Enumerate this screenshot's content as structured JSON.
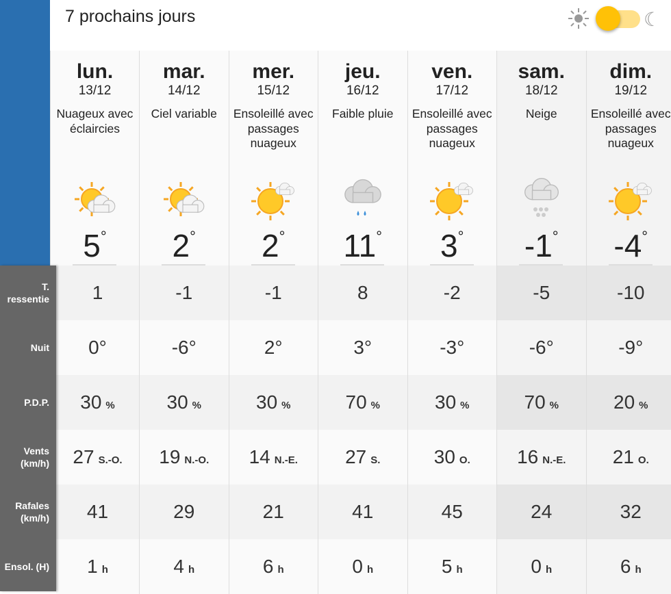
{
  "header": {
    "title": "7 prochains jours",
    "theme_toggle": {
      "state": "light",
      "icons": [
        "sun-icon",
        "moon-icon"
      ],
      "accent": "#ffc107"
    }
  },
  "days": [
    {
      "name": "lun.",
      "date": "13/12",
      "desc": "Nuageux avec éclaircies",
      "icon": "sun-behind-cloud",
      "temp": "5",
      "weekend": false
    },
    {
      "name": "mar.",
      "date": "14/12",
      "desc": "Ciel variable",
      "icon": "sun-behind-cloud",
      "temp": "2",
      "weekend": false
    },
    {
      "name": "mer.",
      "date": "15/12",
      "desc": "Ensoleillé avec passages nuageux",
      "icon": "sun-small-cloud",
      "temp": "2",
      "weekend": false
    },
    {
      "name": "jeu.",
      "date": "16/12",
      "desc": "Faible pluie",
      "icon": "rain-cloud",
      "temp": "11",
      "weekend": false
    },
    {
      "name": "ven.",
      "date": "17/12",
      "desc": "Ensoleillé avec passages nuageux",
      "icon": "sun-small-cloud",
      "temp": "3",
      "weekend": false
    },
    {
      "name": "sam.",
      "date": "18/12",
      "desc": "Neige",
      "icon": "snow-cloud",
      "temp": "-1",
      "weekend": true
    },
    {
      "name": "dim.",
      "date": "19/12",
      "desc": "Ensoleillé avec passages nuageux",
      "icon": "sun-small-cloud",
      "temp": "-4",
      "weekend": true
    }
  ],
  "degree": "°",
  "rows": [
    {
      "label": "T. ressentie",
      "values": [
        "1",
        "-1",
        "-1",
        "8",
        "-2",
        "-5",
        "-10"
      ],
      "units": [
        "",
        "",
        "",
        "",
        "",
        "",
        ""
      ]
    },
    {
      "label": "Nuit",
      "values": [
        "0°",
        "-6°",
        "2°",
        "3°",
        "-3°",
        "-6°",
        "-9°"
      ],
      "units": [
        "",
        "",
        "",
        "",
        "",
        "",
        ""
      ]
    },
    {
      "label": "P.D.P.",
      "values": [
        "30",
        "30",
        "30",
        "70",
        "30",
        "70",
        "20"
      ],
      "units": [
        "%",
        "%",
        "%",
        "%",
        "%",
        "%",
        "%"
      ]
    },
    {
      "label": "Vents (km/h)",
      "values": [
        "27",
        "19",
        "14",
        "27",
        "30",
        "16",
        "21"
      ],
      "units": [
        "S.-O.",
        "N.-O.",
        "N.-E.",
        "S.",
        "O.",
        "N.-E.",
        "O."
      ]
    },
    {
      "label": "Rafales (km/h)",
      "values": [
        "41",
        "29",
        "21",
        "41",
        "45",
        "24",
        "32"
      ],
      "units": [
        "",
        "",
        "",
        "",
        "",
        "",
        ""
      ]
    },
    {
      "label": "Ensol. (H)",
      "values": [
        "1",
        "4",
        "6",
        "0",
        "5",
        "0",
        "6"
      ],
      "units": [
        "h",
        "h",
        "h",
        "h",
        "h",
        "h",
        "h"
      ]
    }
  ]
}
